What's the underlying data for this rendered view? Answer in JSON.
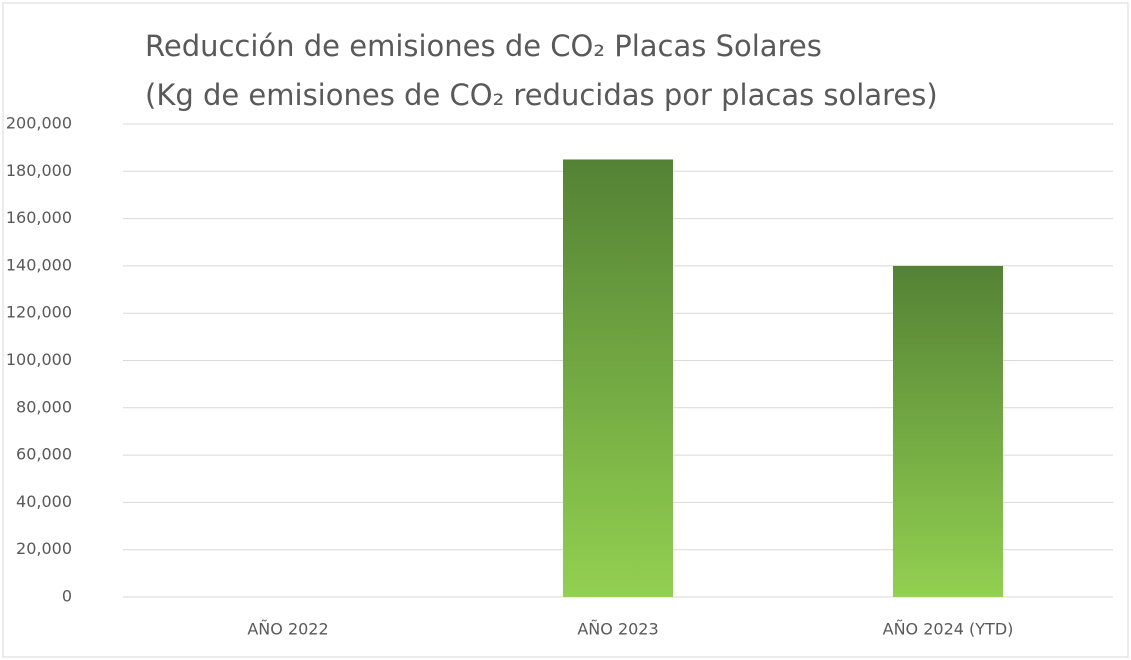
{
  "chart_data": {
    "type": "bar",
    "title": "Reducción de emisiones de CO₂ Placas Solares",
    "subtitle": "(Kg de emisiones de CO₂ reducidas por placas solares)",
    "categories": [
      "AÑO 2022",
      "AÑO 2023",
      "AÑO 2024 (YTD)"
    ],
    "values": [
      0,
      185000,
      140000
    ],
    "color": "#70ad47",
    "ylim": [
      0,
      200000
    ],
    "yticks": [
      0,
      {
        "value": 20000,
        "label": "20,000"
      },
      {
        "value": 40000,
        "label": "40,000"
      },
      {
        "value": 60000,
        "label": "60,000"
      },
      {
        "value": 80000,
        "label": "80,000"
      },
      {
        "value": 100000,
        "label": "100,000"
      },
      {
        "value": 120000,
        "label": "120,000"
      },
      {
        "value": 140000,
        "label": "140,000"
      },
      {
        "value": 160000,
        "label": "160,000"
      },
      {
        "value": 180000,
        "label": "180,000"
      },
      {
        "value": 200000,
        "label": "200,000"
      }
    ],
    "grid": true
  }
}
